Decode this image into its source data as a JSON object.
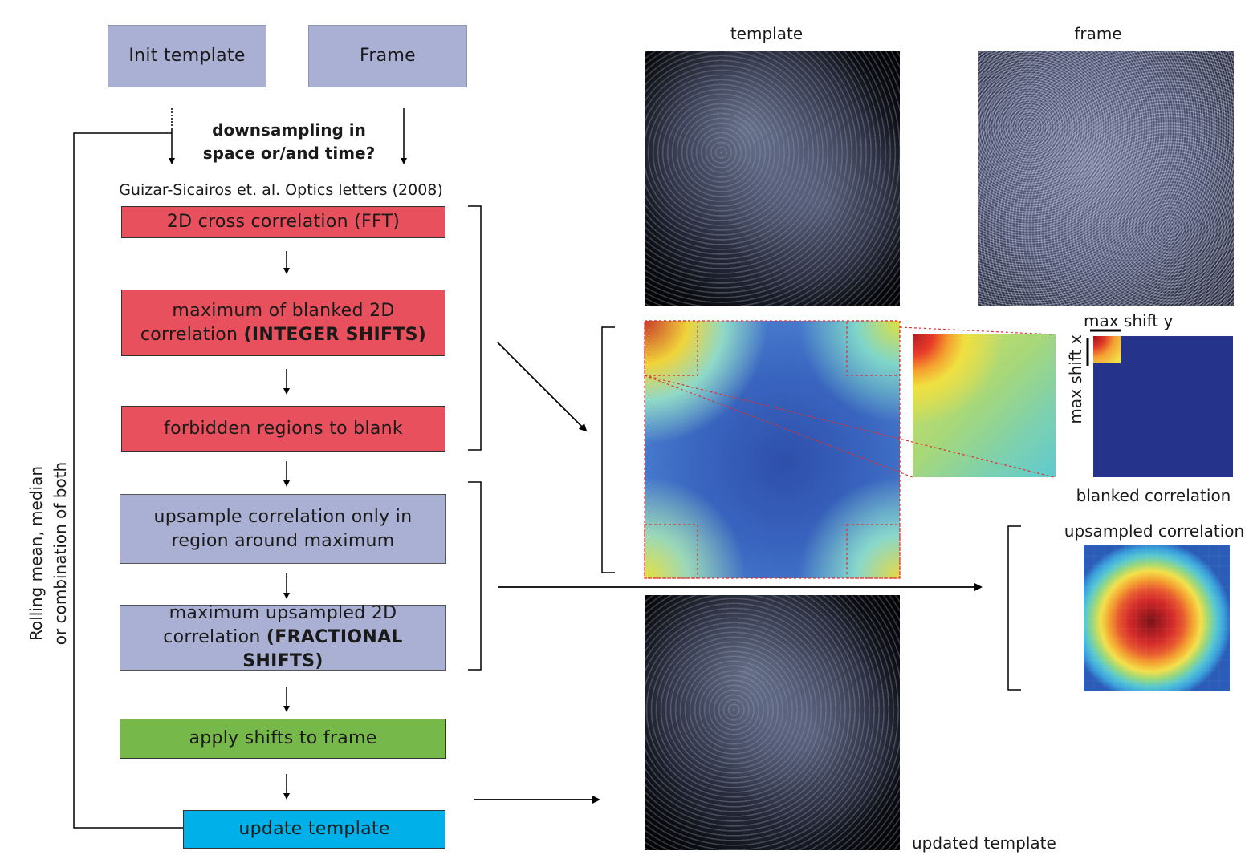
{
  "flow": {
    "init_template": "Init template",
    "frame": "Frame",
    "downsampling_line1": "downsampling in",
    "downsampling_line2": "space or/and time?",
    "citation": "Guizar-Sicairos et. al. Optics letters (2008)",
    "step_cross_corr": "2D cross correlation (FFT)",
    "step_max_blanked_a": "maximum of blanked 2D",
    "step_max_blanked_b": "correlation ",
    "step_max_blanked_bold": "(INTEGER SHIFTS)",
    "step_forbidden": "forbidden regions to blank",
    "step_upsample_a": "upsample correlation only in",
    "step_upsample_b": "region around maximum",
    "step_max_up_a": "maximum upsampled 2D",
    "step_max_up_b": "correlation ",
    "step_max_up_bold": "(FRACTIONAL SHIFTS)",
    "step_apply": "apply shifts to frame",
    "step_update": "update template",
    "loop_label_1": "Rolling mean, median",
    "loop_label_2": "or combination of both"
  },
  "panels": {
    "template_title": "template",
    "frame_title": "frame",
    "max_shift_y": "max shift y",
    "max_shift_x": "max shift x",
    "blanked_corr": "blanked correlation",
    "upsampled_corr": "upsampled correlation",
    "updated_template": "updated template"
  },
  "colors": {
    "lavender": "#aab0d3",
    "red": "#e9505d",
    "green": "#77b84a",
    "cyan": "#00b0e8",
    "blanked_blue": "#2a3a8f"
  }
}
